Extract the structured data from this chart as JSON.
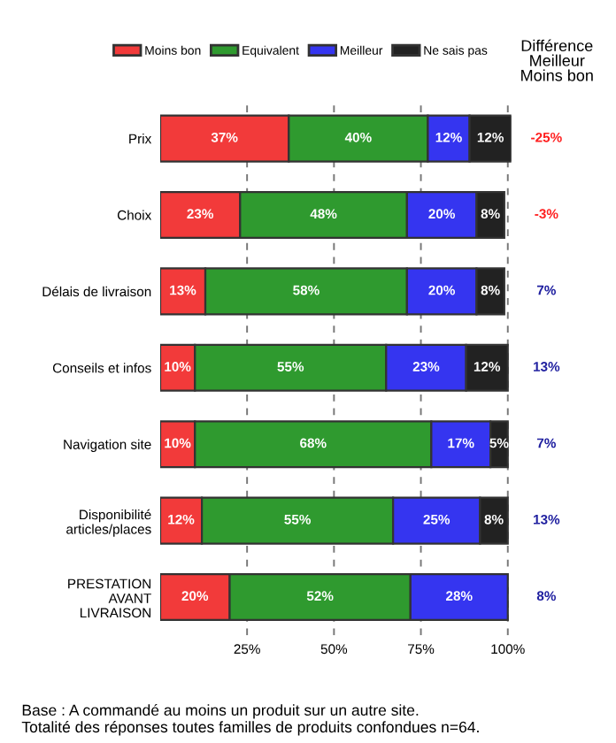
{
  "chart_data": {
    "type": "bar",
    "orientation": "horizontal",
    "stacked": true,
    "grid": "x",
    "legend": "top",
    "categories": [
      "Prix",
      "Choix",
      "Délais de livraison",
      "Conseils et infos",
      "Navigation site",
      "Disponibilité\narticles/places",
      "PRESTATION\nAVANT\nLIVRAISON"
    ],
    "series": [
      {
        "name": "Moins bon",
        "color": "#f23a3a",
        "values": [
          37,
          23,
          13,
          10,
          10,
          12,
          20
        ],
        "value_labels": [
          "37%",
          "23%",
          "13%",
          "10%",
          "10%",
          "12%",
          "20%"
        ]
      },
      {
        "name": "Equivalent",
        "color": "#2f9a2f",
        "values": [
          40,
          48,
          58,
          55,
          68,
          55,
          52
        ],
        "value_labels": [
          "40%",
          "48%",
          "58%",
          "55%",
          "68%",
          "55%",
          "52%"
        ]
      },
      {
        "name": "Meilleur",
        "color": "#3535f0",
        "values": [
          12,
          20,
          20,
          23,
          17,
          25,
          28
        ],
        "value_labels": [
          "12%",
          "20%",
          "20%",
          "23%",
          "17%",
          "25%",
          "28%"
        ]
      },
      {
        "name": "Ne sais pas",
        "color": "#222222",
        "values": [
          12,
          8,
          8,
          12,
          5,
          8,
          null
        ],
        "value_labels": [
          "12%",
          "8%",
          "8%",
          "12%",
          "5%",
          "8%",
          null
        ]
      }
    ],
    "xlim": [
      0,
      101
    ],
    "xticks": [
      {
        "value": 25,
        "label": "25%"
      },
      {
        "value": 50,
        "label": "50%"
      },
      {
        "value": 75,
        "label": "75%"
      },
      {
        "value": 100,
        "label": "100%"
      }
    ],
    "annotations": [
      "Différence\nMeilleur\nMoins bon",
      "Base : A commandé au moins un produit sur un autre site.\nTotalité des réponses toutes familles de produits confondues n=64.",
      "-25%",
      "-3%",
      "7%",
      "13%",
      "7%",
      "13%",
      "8%"
    ]
  }
}
